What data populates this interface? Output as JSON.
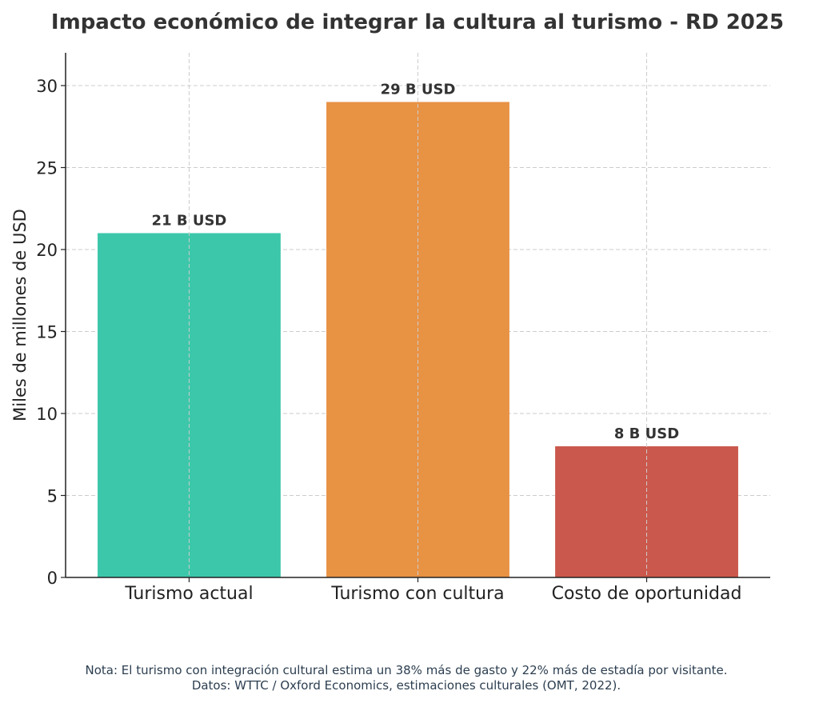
{
  "chart_data": {
    "type": "bar",
    "title": "Impacto económico de integrar la cultura al turismo - RD 2025",
    "xlabel": "",
    "ylabel": "Miles de millones de USD",
    "categories": [
      "Turismo actual",
      "Turismo con cultura",
      "Costo de oportunidad"
    ],
    "values": [
      21,
      29,
      8
    ],
    "data_labels": [
      "21 B USD",
      "29 B USD",
      "8 B USD"
    ],
    "colors": [
      "#3CC7AA",
      "#E89244",
      "#CB584C"
    ],
    "ylim": [
      0,
      32
    ],
    "yticks": [
      0,
      5,
      10,
      15,
      20,
      25,
      30
    ],
    "grid": true
  },
  "footnote": {
    "line1": "Nota: El turismo con integración cultural estima un 38% más de gasto y 22% más de estadía por visitante.",
    "line2": "Datos: WTTC / Oxford Economics, estimaciones culturales (OMT, 2022)."
  }
}
